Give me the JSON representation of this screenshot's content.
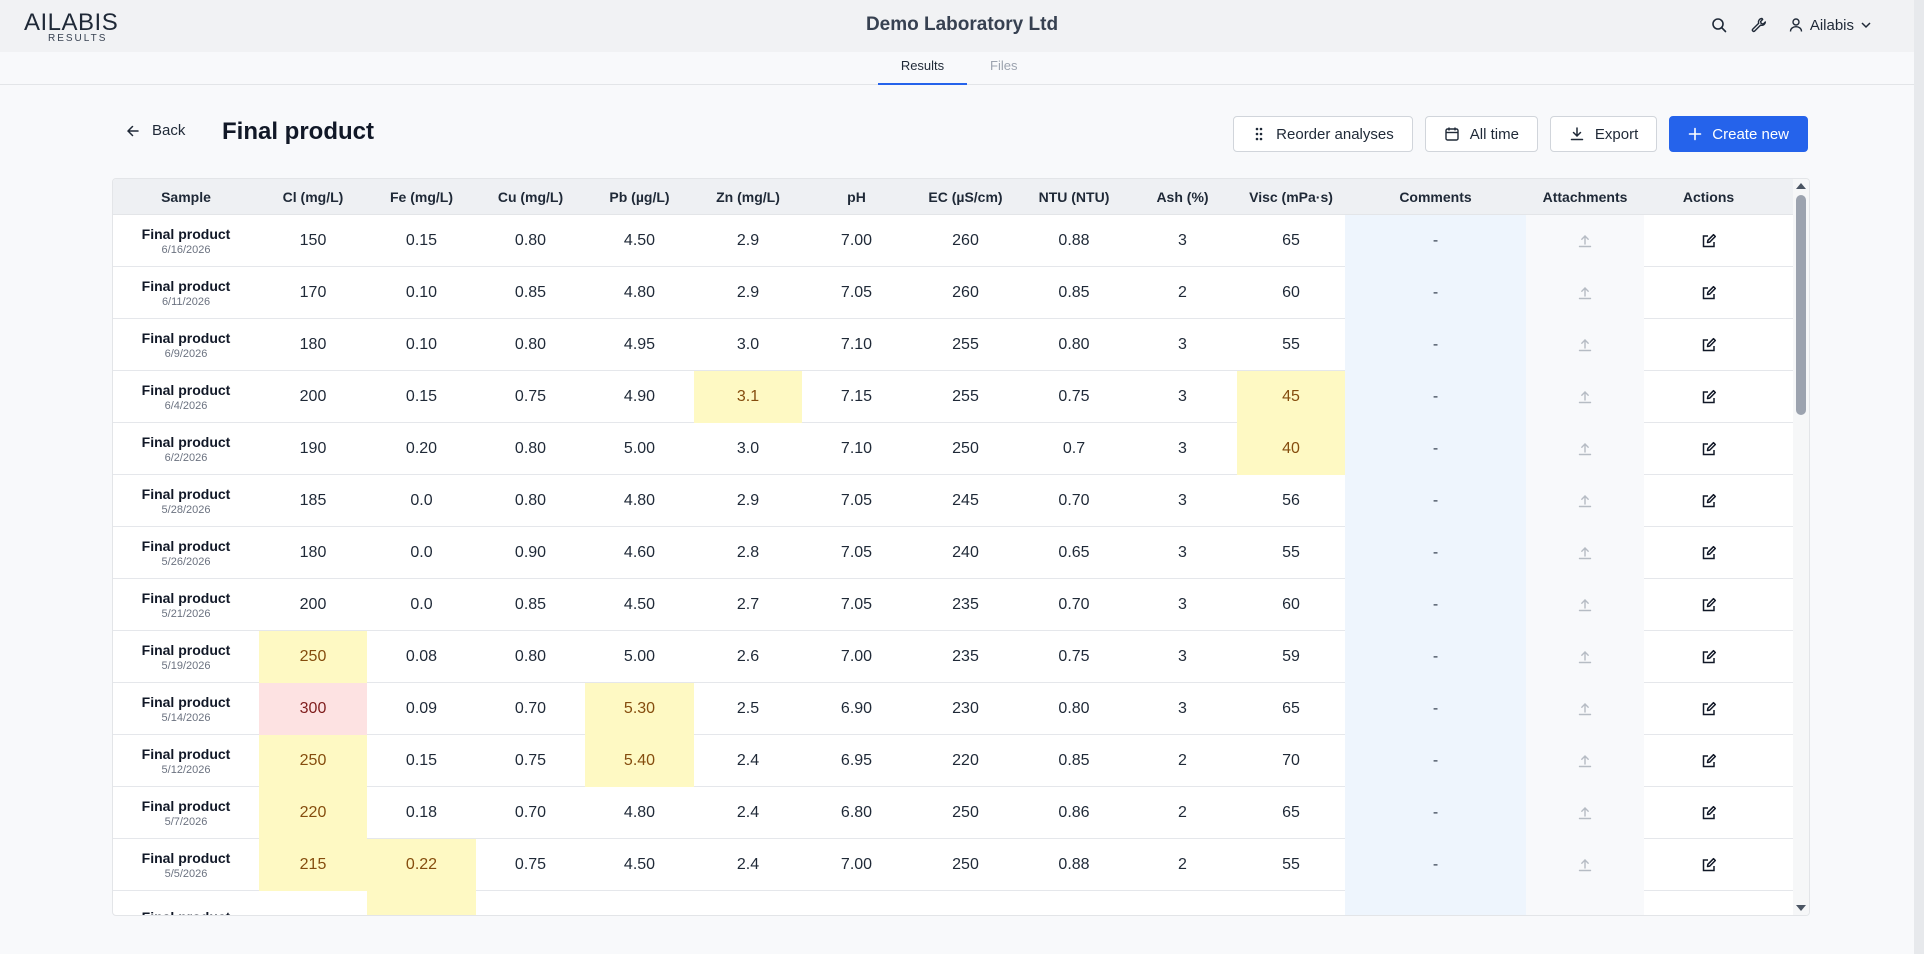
{
  "app": {
    "logo_main": "AILABIS",
    "logo_sub": "RESULTS",
    "company": "Demo Laboratory Ltd",
    "user": "Ailabis"
  },
  "tabs": [
    {
      "label": "Results",
      "active": true
    },
    {
      "label": "Files",
      "active": false
    }
  ],
  "page": {
    "back_label": "Back",
    "title": "Final product",
    "reorder_label": "Reorder analyses",
    "range_label": "All time",
    "export_label": "Export",
    "create_label": "Create new"
  },
  "colors": {
    "accent": "#2563eb",
    "warn_highlight": "#fef9c3",
    "alert_highlight": "#fde2e2",
    "comments_column": "#eef5fd"
  },
  "table": {
    "columns": [
      "Sample",
      "Cl (mg/L)",
      "Fe (mg/L)",
      "Cu (mg/L)",
      "Pb (µg/L)",
      "Zn (mg/L)",
      "pH",
      "EC (µS/cm)",
      "NTU (NTU)",
      "Ash (%)",
      "Visc (mPa·s)",
      "Comments",
      "Attachments",
      "Actions"
    ],
    "rows": [
      {
        "name": "Final product",
        "date": "6/16/2026",
        "values": [
          "150",
          "0.15",
          "0.80",
          "4.50",
          "2.9",
          "7.00",
          "260",
          "0.88",
          "3",
          "65"
        ],
        "comment": "-",
        "flags": {}
      },
      {
        "name": "Final product",
        "date": "6/11/2026",
        "values": [
          "170",
          "0.10",
          "0.85",
          "4.80",
          "2.9",
          "7.05",
          "260",
          "0.85",
          "2",
          "60"
        ],
        "comment": "-",
        "flags": {}
      },
      {
        "name": "Final product",
        "date": "6/9/2026",
        "values": [
          "180",
          "0.10",
          "0.80",
          "4.95",
          "3.0",
          "7.10",
          "255",
          "0.80",
          "3",
          "55"
        ],
        "comment": "-",
        "flags": {}
      },
      {
        "name": "Final product",
        "date": "6/4/2026",
        "values": [
          "200",
          "0.15",
          "0.75",
          "4.90",
          "3.1",
          "7.15",
          "255",
          "0.75",
          "3",
          "45"
        ],
        "comment": "-",
        "flags": {
          "4": "y",
          "9": "y"
        }
      },
      {
        "name": "Final product",
        "date": "6/2/2026",
        "values": [
          "190",
          "0.20",
          "0.80",
          "5.00",
          "3.0",
          "7.10",
          "250",
          "0.7",
          "3",
          "40"
        ],
        "comment": "-",
        "flags": {
          "9": "y"
        }
      },
      {
        "name": "Final product",
        "date": "5/28/2026",
        "values": [
          "185",
          "0.0",
          "0.80",
          "4.80",
          "2.9",
          "7.05",
          "245",
          "0.70",
          "3",
          "56"
        ],
        "comment": "-",
        "flags": {}
      },
      {
        "name": "Final product",
        "date": "5/26/2026",
        "values": [
          "180",
          "0.0",
          "0.90",
          "4.60",
          "2.8",
          "7.05",
          "240",
          "0.65",
          "3",
          "55"
        ],
        "comment": "-",
        "flags": {}
      },
      {
        "name": "Final product",
        "date": "5/21/2026",
        "values": [
          "200",
          "0.0",
          "0.85",
          "4.50",
          "2.7",
          "7.05",
          "235",
          "0.70",
          "3",
          "60"
        ],
        "comment": "-",
        "flags": {}
      },
      {
        "name": "Final product",
        "date": "5/19/2026",
        "values": [
          "250",
          "0.08",
          "0.80",
          "5.00",
          "2.6",
          "7.00",
          "235",
          "0.75",
          "3",
          "59"
        ],
        "comment": "-",
        "flags": {
          "0": "y"
        }
      },
      {
        "name": "Final product",
        "date": "5/14/2026",
        "values": [
          "300",
          "0.09",
          "0.70",
          "5.30",
          "2.5",
          "6.90",
          "230",
          "0.80",
          "3",
          "65"
        ],
        "comment": "-",
        "flags": {
          "0": "r",
          "3": "y"
        }
      },
      {
        "name": "Final product",
        "date": "5/12/2026",
        "values": [
          "250",
          "0.15",
          "0.75",
          "5.40",
          "2.4",
          "6.95",
          "220",
          "0.85",
          "2",
          "70"
        ],
        "comment": "-",
        "flags": {
          "0": "y",
          "3": "y"
        }
      },
      {
        "name": "Final product",
        "date": "5/7/2026",
        "values": [
          "220",
          "0.18",
          "0.70",
          "4.80",
          "2.4",
          "6.80",
          "250",
          "0.86",
          "2",
          "65"
        ],
        "comment": "-",
        "flags": {
          "0": "y"
        }
      },
      {
        "name": "Final product",
        "date": "5/5/2026",
        "values": [
          "215",
          "0.22",
          "0.75",
          "4.50",
          "2.4",
          "7.00",
          "250",
          "0.88",
          "2",
          "55"
        ],
        "comment": "-",
        "flags": {
          "0": "y",
          "1": "y"
        }
      },
      {
        "name": "Final product",
        "date": "",
        "values": [
          "",
          "",
          "",
          "",
          "",
          "",
          "",
          "",
          "",
          ""
        ],
        "comment": "",
        "flags": {
          "1": "y"
        }
      }
    ]
  }
}
